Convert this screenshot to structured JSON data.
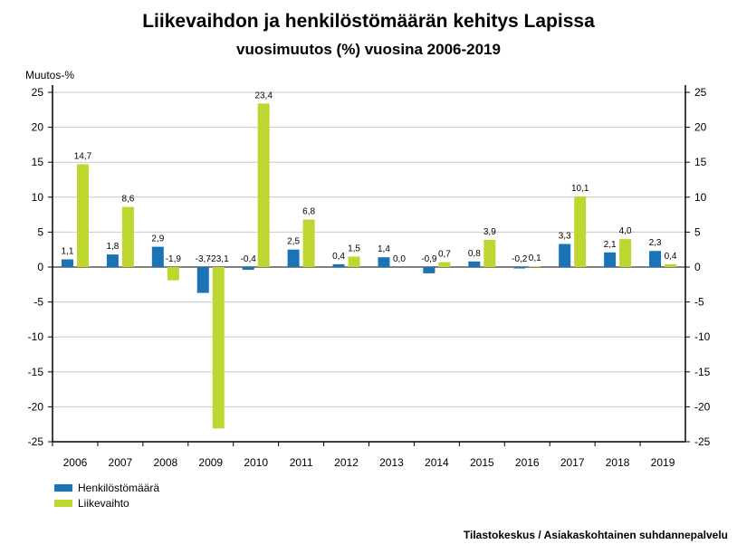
{
  "title": "Liikevaihdon ja henkilöstömäärän kehitys Lapissa",
  "subtitle": "vuosimuutos (%) vuosina 2006-2019",
  "source": "Tilastokeskus / Asiakaskohtainen suhdannepalvelu",
  "colors": {
    "henkilostomaara": "#1a73b4",
    "liikevaihto": "#bfd630",
    "grid": "#c8c8c8"
  },
  "chart_data": {
    "type": "bar",
    "title": "Liikevaihdon ja henkilöstömäärän kehitys Lapissa",
    "subtitle": "vuosimuutos (%) vuosina 2006-2019",
    "ylabel": "Muutos-%",
    "ylim": [
      -25,
      25
    ],
    "yticks": [
      25,
      20,
      15,
      10,
      5,
      0,
      -5,
      -10,
      -15,
      -20,
      -25
    ],
    "ytick_labels": [
      "25",
      "20",
      "15",
      "10",
      "5",
      "0",
      "-5",
      "-10",
      "-15",
      "-20",
      "-25"
    ],
    "grid": true,
    "legend_position": "bottom-left",
    "categories": [
      "2006",
      "2007",
      "2008",
      "2009",
      "2010",
      "2011",
      "2012",
      "2013",
      "2014",
      "2015",
      "2016",
      "2017",
      "2018",
      "2019"
    ],
    "series": [
      {
        "name": "Henkilöstömäärä",
        "values": [
          1.1,
          1.8,
          2.9,
          -3.7,
          -0.4,
          2.5,
          0.4,
          1.4,
          -0.9,
          0.8,
          -0.2,
          3.3,
          2.1,
          2.3
        ],
        "labels": [
          "1,1",
          "1,8",
          "2,9",
          "-3,7",
          "-0,4",
          "2,5",
          "0,4",
          "1,4",
          "-0,9",
          "0,8",
          "-0,2",
          "3,3",
          "2,1",
          "2,3"
        ]
      },
      {
        "name": "Liikevaihto",
        "values": [
          14.7,
          8.6,
          -1.9,
          -23.1,
          23.4,
          6.8,
          1.5,
          0.0,
          0.7,
          3.9,
          0.1,
          10.1,
          4.0,
          0.4
        ],
        "labels": [
          "14,7",
          "8,6",
          "-1,9",
          "-23,1",
          "23,4",
          "6,8",
          "1,5",
          "0,0",
          "0,7",
          "3,9",
          "0,1",
          "10,1",
          "4,0",
          "0,4"
        ]
      }
    ]
  }
}
